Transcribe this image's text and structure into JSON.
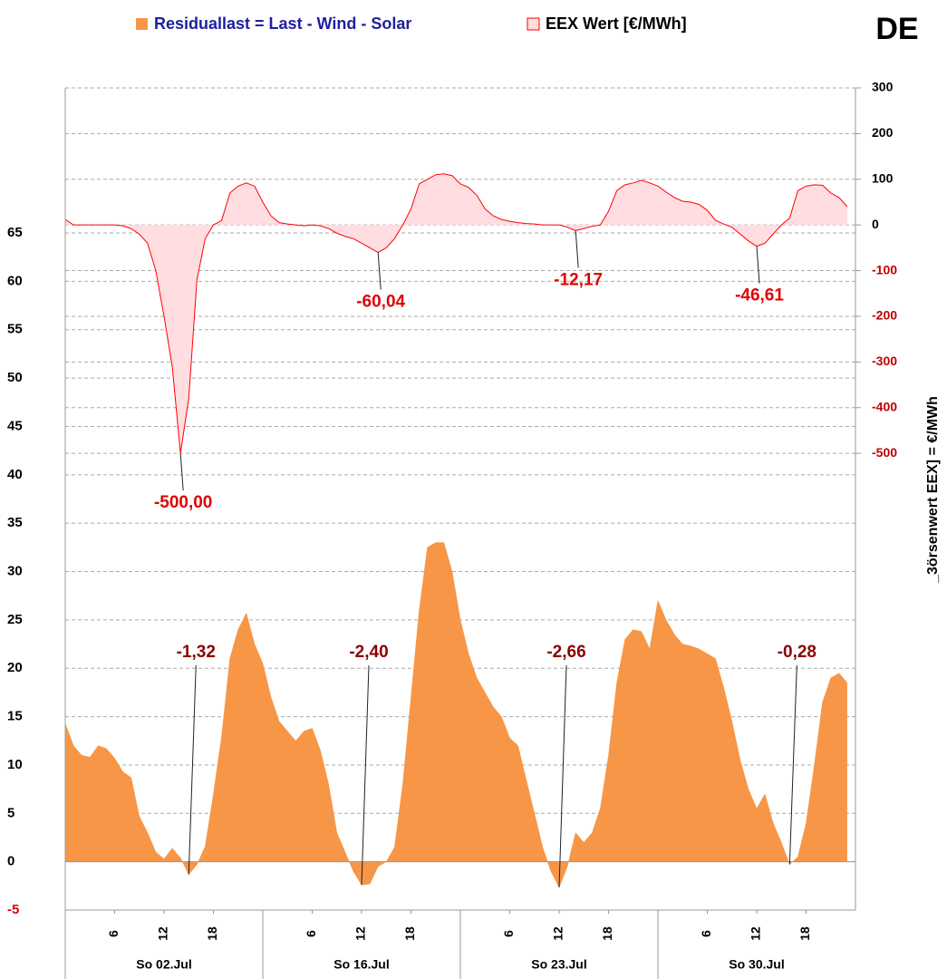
{
  "chart_data": {
    "type": "area",
    "region": "DE",
    "y2_label": "_3örsenwert  EEX]  =  €/MWh",
    "x": [
      0,
      1,
      2,
      3,
      4,
      5,
      6,
      7,
      8,
      9,
      10,
      11,
      12,
      13,
      14,
      15,
      16,
      17,
      18,
      19,
      20,
      21,
      22,
      23,
      24,
      25,
      26,
      27,
      28,
      29,
      30,
      31,
      32,
      33,
      34,
      35,
      36,
      37,
      38,
      39,
      40,
      41,
      42,
      43,
      44,
      45,
      46,
      47,
      48,
      49,
      50,
      51,
      52,
      53,
      54,
      55,
      56,
      57,
      58,
      59,
      60,
      61,
      62,
      63,
      64,
      65,
      66,
      67,
      68,
      69,
      70,
      71,
      72,
      73,
      74,
      75,
      76,
      77,
      78,
      79,
      80,
      81,
      82,
      83,
      84,
      85,
      86,
      87,
      88,
      89,
      90,
      91,
      92,
      93,
      94,
      95
    ],
    "xlim": [
      0,
      96
    ],
    "xticks": [
      {
        "value": 6,
        "label": "6"
      },
      {
        "value": 12,
        "label": "12"
      },
      {
        "value": 18,
        "label": "18"
      },
      {
        "value": 30,
        "label": "6"
      },
      {
        "value": 36,
        "label": "12"
      },
      {
        "value": 42,
        "label": "18"
      },
      {
        "value": 54,
        "label": "6"
      },
      {
        "value": 60,
        "label": "12"
      },
      {
        "value": 66,
        "label": "18"
      },
      {
        "value": 78,
        "label": "6"
      },
      {
        "value": 84,
        "label": "12"
      },
      {
        "value": 90,
        "label": "18"
      }
    ],
    "days": [
      "So 02.Jul",
      "So 16.Jul",
      "So 23.Jul",
      "So 30.Jul"
    ],
    "ylim": [
      -5,
      80
    ],
    "yticks": [
      -5,
      0,
      5,
      10,
      15,
      20,
      25,
      30,
      35,
      40,
      45,
      50,
      55,
      60,
      65
    ],
    "y2lim": [
      -1500,
      300
    ],
    "y2ticks": [
      300,
      200,
      100,
      0,
      -100,
      -200,
      -300,
      -400,
      -500
    ],
    "grid": true,
    "series": [
      {
        "name": "Residuallast  =  Last - Wind - Solar",
        "color": "#f79646",
        "values": [
          14.3,
          12,
          11,
          10.8,
          12,
          11.7,
          10.7,
          9.3,
          8.7,
          4.7,
          3,
          1,
          0.3,
          1.4,
          0.4,
          -1.32,
          -0.3,
          1.6,
          7,
          13,
          21,
          24,
          25.7,
          22.5,
          20.5,
          17,
          14.5,
          13.5,
          12.5,
          13.5,
          13.8,
          11.5,
          8,
          3,
          1,
          -1,
          -2.4,
          -2.3,
          -0.5,
          0,
          1.5,
          8,
          17,
          26,
          32.5,
          33,
          33,
          30,
          25,
          21.5,
          19,
          17.5,
          16,
          15,
          12.8,
          12,
          8.5,
          5,
          1.5,
          -1,
          -2.66,
          -0.5,
          3,
          2,
          3,
          5.5,
          11,
          18.5,
          23,
          24,
          23.8,
          22,
          27,
          25,
          23.5,
          22.5,
          22.3,
          22,
          21.5,
          21,
          18,
          14.5,
          10.5,
          7.5,
          5.5,
          7,
          4,
          2,
          -0.28,
          0.5,
          4,
          10,
          16.5,
          19,
          19.5,
          18.5
        ],
        "value_labels": [
          null,
          null,
          null,
          null,
          null,
          null,
          null,
          null,
          null,
          null,
          null,
          null,
          null,
          null,
          null,
          "-1,32",
          null,
          null,
          null,
          null,
          null,
          null,
          null,
          null,
          null,
          null,
          null,
          null,
          null,
          null,
          null,
          null,
          null,
          null,
          null,
          null,
          "-2,40",
          null,
          null,
          null,
          null,
          null,
          null,
          null,
          null,
          null,
          null,
          null,
          null,
          null,
          null,
          null,
          null,
          null,
          null,
          null,
          null,
          null,
          null,
          null,
          "-2,66",
          null,
          null,
          null,
          null,
          null,
          null,
          null,
          null,
          null,
          null,
          null,
          null,
          null,
          null,
          null,
          null,
          null,
          null,
          null,
          null,
          null,
          null,
          null,
          null,
          null,
          null,
          null,
          "-0,28",
          null,
          null,
          null,
          null,
          null,
          null,
          null
        ]
      },
      {
        "name": "EEX Wert [€/MWh]",
        "color": "#ff0000",
        "fill": "#ffdde0",
        "axis": "y2",
        "values": [
          12,
          0,
          0,
          0,
          0,
          0,
          0,
          -2,
          -8,
          -20,
          -40,
          -100,
          -200,
          -310,
          -500,
          -380,
          -120,
          -30,
          0,
          10,
          70,
          85,
          92,
          85,
          50,
          20,
          5,
          2,
          0,
          -2,
          0,
          -2,
          -8,
          -18,
          -25,
          -30,
          -40,
          -50,
          -60.04,
          -50,
          -30,
          0,
          35,
          90,
          100,
          110,
          112,
          108,
          90,
          82,
          65,
          35,
          20,
          12,
          8,
          5,
          3,
          2,
          0,
          0,
          0,
          -5,
          -12.17,
          -8,
          -3,
          0,
          30,
          75,
          88,
          92,
          98,
          92,
          85,
          72,
          60,
          52,
          50,
          45,
          32,
          10,
          2,
          -5,
          -20,
          -35,
          -46.61,
          -40,
          -20,
          0,
          15,
          75,
          85,
          88,
          87,
          70,
          60,
          40
        ],
        "value_labels": [
          null,
          null,
          null,
          null,
          null,
          null,
          null,
          null,
          null,
          null,
          null,
          null,
          null,
          null,
          "-500,00",
          null,
          null,
          null,
          null,
          null,
          null,
          null,
          null,
          null,
          null,
          null,
          null,
          null,
          null,
          null,
          null,
          null,
          null,
          null,
          null,
          null,
          null,
          null,
          "-60,04",
          null,
          null,
          null,
          null,
          null,
          null,
          null,
          null,
          null,
          null,
          null,
          null,
          null,
          null,
          null,
          null,
          null,
          null,
          null,
          null,
          null,
          null,
          null,
          "-12,17",
          null,
          null,
          null,
          null,
          null,
          null,
          null,
          null,
          null,
          null,
          null,
          null,
          null,
          null,
          null,
          null,
          null,
          null,
          null,
          null,
          null,
          "-46,61",
          null,
          null,
          null,
          null,
          null,
          null,
          null,
          null,
          null,
          null,
          null
        ]
      }
    ]
  }
}
